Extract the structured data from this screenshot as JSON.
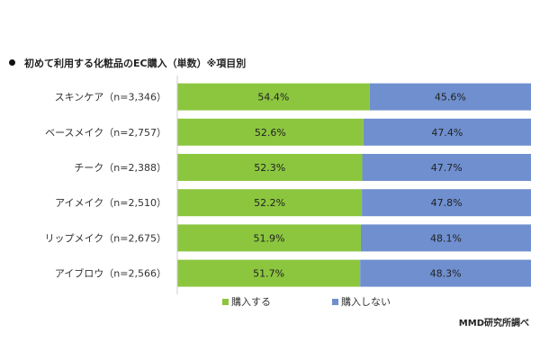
{
  "title": "初めて利用する化粧品のEC購入（単数）※項目別",
  "source": "MMD研究所調べ",
  "chart_data": {
    "type": "bar",
    "stacked": true,
    "orientation": "horizontal",
    "title": "初めて利用する化粧品のEC購入（単数）※項目別",
    "categories": [
      "スキンケア（n=3,346）",
      "ベースメイク（n=2,757）",
      "チーク（n=2,388）",
      "アイメイク（n=2,510）",
      "リップメイク（n=2,675）",
      "アイブロウ（n=2,566）"
    ],
    "series": [
      {
        "name": "購入する",
        "color": "#8cc63f",
        "values": [
          54.4,
          52.6,
          52.3,
          52.2,
          51.9,
          51.7
        ],
        "labels": [
          "54.4%",
          "52.6%",
          "52.3%",
          "52.2%",
          "51.9%",
          "51.7%"
        ]
      },
      {
        "name": "購入しない",
        "color": "#6f8fcf",
        "values": [
          45.6,
          47.4,
          47.7,
          47.8,
          48.1,
          48.3
        ],
        "labels": [
          "45.6%",
          "47.4%",
          "47.7%",
          "47.8%",
          "48.1%",
          "48.3%"
        ]
      }
    ],
    "xlim": [
      0,
      100
    ],
    "legend": "bottom"
  }
}
